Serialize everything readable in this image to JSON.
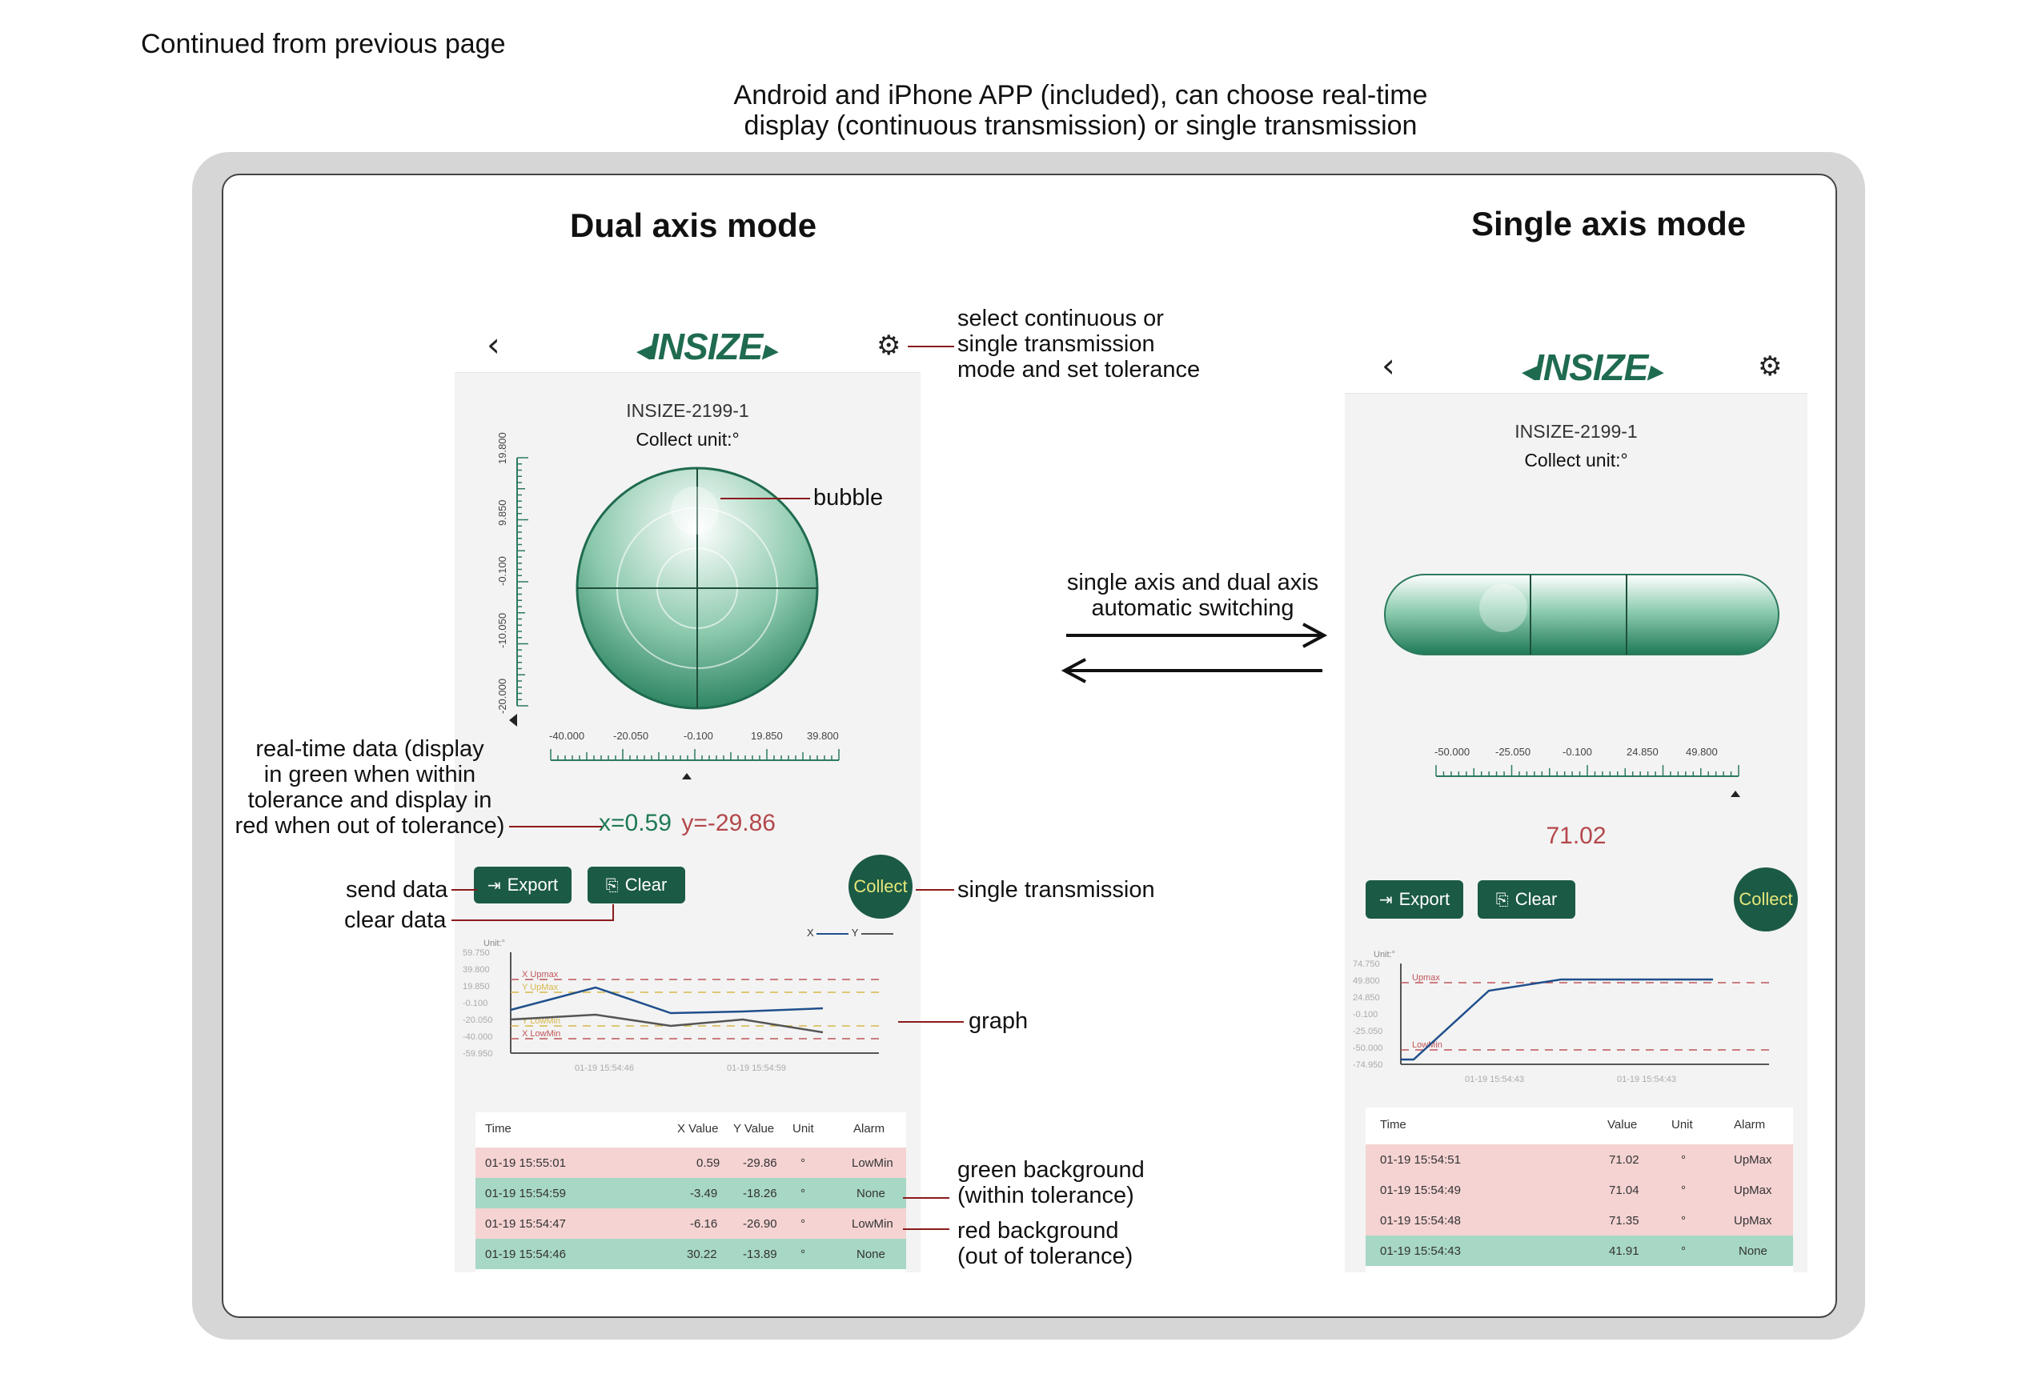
{
  "continued_label": "Continued from previous page",
  "header": {
    "line1": "Android and iPhone APP (included), can choose real-time",
    "line2": "display (continuous transmission) or single transmission"
  },
  "colors": {
    "brand_green": "#1b5a45",
    "within_tolerance_bg": "#a7d7c5",
    "out_of_tolerance_bg": "#f5d3d3",
    "red_value": "#b3474b",
    "green_value": "#1e7a55"
  },
  "dual": {
    "title": "Dual axis mode",
    "app": {
      "back_icon": "chevron-left-icon",
      "logo": "INSIZE",
      "settings_icon": "gear-icon",
      "device": "INSIZE-2199-1",
      "collect_unit": "Collect unit:°",
      "vertical_ticks": [
        "19.800",
        "9.850",
        "-0.100",
        "-10.050",
        "-20.000"
      ],
      "horizontal_ticks": [
        "-40.000",
        "-20.050",
        "-0.100",
        "19.850",
        "39.800"
      ],
      "reading_x": "x=0.59",
      "reading_y": "y=-29.86",
      "export_label": "Export",
      "clear_label": "Clear",
      "collect_label": "Collect",
      "legend_x": "X",
      "legend_y": "Y",
      "graph": {
        "unit_label": "Unit:°",
        "y_ticks": [
          "59.750",
          "39.800",
          "19.850",
          "-0.100",
          "-20.050",
          "-40.000",
          "-59.950"
        ],
        "x_ticks": [
          "01-19 15:54:46",
          "01-19 15:54:59"
        ],
        "limits": {
          "x_upmax": "X Upmax",
          "y_upmax": "Y UpMax",
          "y_lowmin": "Y LowMin",
          "x_lowmin": "X LowMin"
        }
      },
      "table": {
        "headers": [
          "Time",
          "X Value",
          "Y Value",
          "Unit",
          "Alarm"
        ],
        "rows": [
          {
            "time": "01-19 15:55:01",
            "x": "0.59",
            "y": "-29.86",
            "unit": "°",
            "alarm": "LowMin",
            "status": "out"
          },
          {
            "time": "01-19 15:54:59",
            "x": "-3.49",
            "y": "-18.26",
            "unit": "°",
            "alarm": "None",
            "status": "in"
          },
          {
            "time": "01-19 15:54:47",
            "x": "-6.16",
            "y": "-26.90",
            "unit": "°",
            "alarm": "LowMin",
            "status": "out"
          },
          {
            "time": "01-19 15:54:46",
            "x": "30.22",
            "y": "-13.89",
            "unit": "°",
            "alarm": "None",
            "status": "in"
          }
        ]
      }
    }
  },
  "single": {
    "title": "Single axis mode",
    "app": {
      "back_icon": "chevron-left-icon",
      "logo": "INSIZE",
      "settings_icon": "gear-icon",
      "device": "INSIZE-2199-1",
      "collect_unit": "Collect unit:°",
      "horizontal_ticks": [
        "-50.000",
        "-25.050",
        "-0.100",
        "24.850",
        "49.800"
      ],
      "reading": "71.02",
      "export_label": "Export",
      "clear_label": "Clear",
      "collect_label": "Collect",
      "graph": {
        "unit_label": "Unit:°",
        "y_ticks": [
          "74.750",
          "49.800",
          "24.850",
          "-0.100",
          "-25.050",
          "-50.000",
          "-74.950"
        ],
        "x_ticks": [
          "01-19 15:54:43",
          "01-19 15:54:43"
        ],
        "limits": {
          "upmax": "Upmax",
          "lowmin": "LowMin"
        }
      },
      "table": {
        "headers": [
          "Time",
          "Value",
          "Unit",
          "Alarm"
        ],
        "rows": [
          {
            "time": "01-19 15:54:51",
            "value": "71.02",
            "unit": "°",
            "alarm": "UpMax",
            "status": "out"
          },
          {
            "time": "01-19 15:54:49",
            "value": "71.04",
            "unit": "°",
            "alarm": "UpMax",
            "status": "out"
          },
          {
            "time": "01-19 15:54:48",
            "value": "71.35",
            "unit": "°",
            "alarm": "UpMax",
            "status": "out"
          },
          {
            "time": "01-19 15:54:43",
            "value": "41.91",
            "unit": "°",
            "alarm": "None",
            "status": "in"
          }
        ]
      }
    }
  },
  "annotations": {
    "settings": [
      "select continuous or",
      "single transmission",
      "mode and set tolerance"
    ],
    "bubble": "bubble",
    "switching": [
      "single axis and dual axis",
      "automatic switching"
    ],
    "realtime": [
      "real-time data (display",
      "in green when within",
      "tolerance and display in",
      "red when out of tolerance)"
    ],
    "send_data": "send data",
    "clear_data": "clear data",
    "single_transmission": "single transmission",
    "graph": "graph",
    "green_bg": [
      "green background",
      "(within tolerance)"
    ],
    "red_bg": [
      "red background",
      "(out of tolerance)"
    ]
  }
}
